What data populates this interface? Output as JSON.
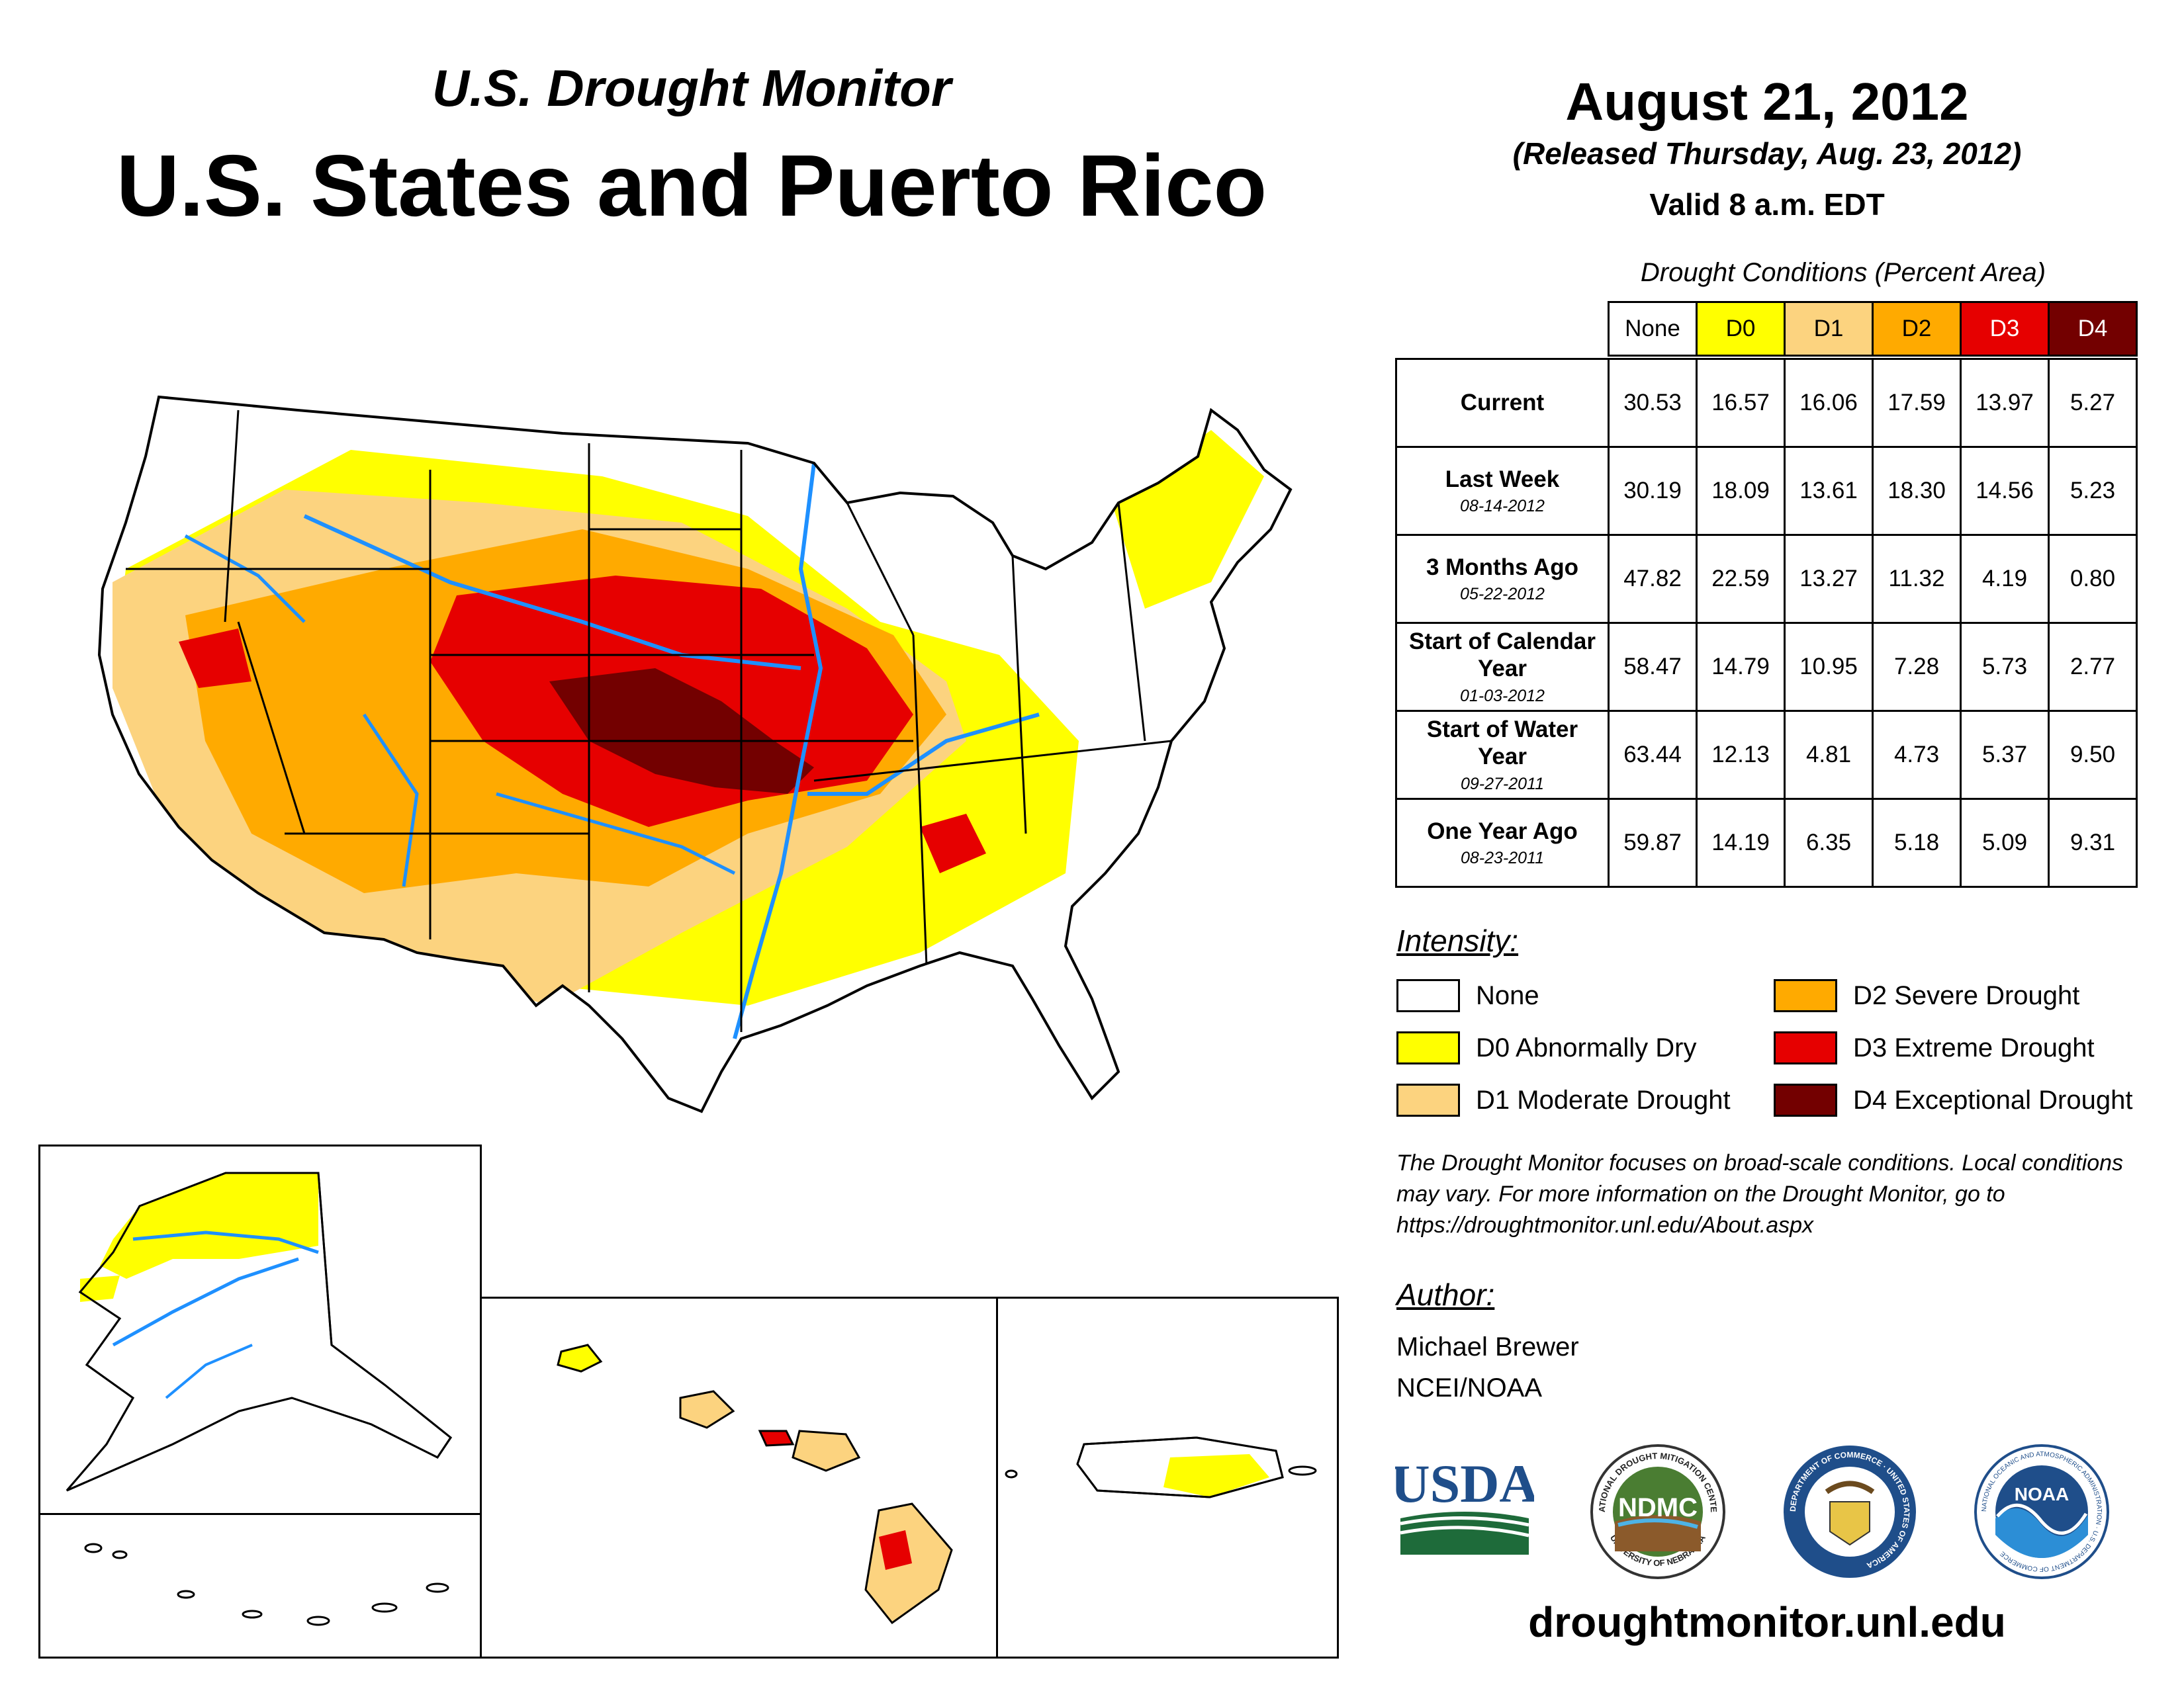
{
  "header": {
    "subtitle": "U.S. Drought Monitor",
    "title": "U.S. States and Puerto Rico",
    "date": "August 21, 2012",
    "released": "(Released Thursday, Aug. 23, 2012)",
    "valid": "Valid 8 a.m. EDT"
  },
  "table": {
    "title": "Drought Conditions (Percent Area)",
    "columns": [
      "None",
      "D0",
      "D1",
      "D2",
      "D3",
      "D4"
    ],
    "column_colors": [
      "#ffffff",
      "#ffff00",
      "#fcd37f",
      "#ffaa00",
      "#e60000",
      "#730000"
    ],
    "rows": [
      {
        "label": "Current",
        "sub": "",
        "values": [
          "30.53",
          "16.57",
          "16.06",
          "17.59",
          "13.97",
          "5.27"
        ]
      },
      {
        "label": "Last Week",
        "sub": "08-14-2012",
        "values": [
          "30.19",
          "18.09",
          "13.61",
          "18.30",
          "14.56",
          "5.23"
        ]
      },
      {
        "label": "3 Months Ago",
        "sub": "05-22-2012",
        "values": [
          "47.82",
          "22.59",
          "13.27",
          "11.32",
          "4.19",
          "0.80"
        ]
      },
      {
        "label": "Start of Calendar Year",
        "sub": "01-03-2012",
        "values": [
          "58.47",
          "14.79",
          "10.95",
          "7.28",
          "5.73",
          "2.77"
        ]
      },
      {
        "label": "Start of Water Year",
        "sub": "09-27-2011",
        "values": [
          "63.44",
          "12.13",
          "4.81",
          "4.73",
          "5.37",
          "9.50"
        ]
      },
      {
        "label": "One Year Ago",
        "sub": "08-23-2011",
        "values": [
          "59.87",
          "14.19",
          "6.35",
          "5.18",
          "5.09",
          "9.31"
        ]
      }
    ]
  },
  "legend": {
    "heading": "Intensity:",
    "items": [
      {
        "label": "None",
        "color": "#ffffff"
      },
      {
        "label": "D0 Abnormally Dry",
        "color": "#ffff00"
      },
      {
        "label": "D1 Moderate Drought",
        "color": "#fcd37f"
      },
      {
        "label": "D2 Severe Drought",
        "color": "#ffaa00"
      },
      {
        "label": "D3 Extreme Drought",
        "color": "#e60000"
      },
      {
        "label": "D4 Exceptional Drought",
        "color": "#730000"
      }
    ]
  },
  "note": "The Drought Monitor focuses on broad-scale conditions. Local conditions may vary. For more information on the Drought Monitor, go to https://droughtmonitor.unl.edu/About.aspx",
  "author": {
    "heading": "Author:",
    "name": "Michael Brewer",
    "org": "NCEI/NOAA"
  },
  "logos": {
    "usda": "USDA",
    "ndmc": "NDMC",
    "ndmc_ring_top": "NATIONAL DROUGHT MITIGATION CENTER",
    "ndmc_ring_bottom": "UNIVERSITY OF NEBRASKA",
    "doc_ring": "DEPARTMENT OF COMMERCE · UNITED STATES OF AMERICA",
    "noaa": "NOAA",
    "noaa_ring": "NATIONAL OCEANIC AND ATMOSPHERIC ADMINISTRATION · U.S. DEPARTMENT OF COMMERCE"
  },
  "footer_url": "droughtmonitor.unl.edu",
  "colors": {
    "none": "#ffffff",
    "d0": "#ffff00",
    "d1": "#fcd37f",
    "d2": "#ffaa00",
    "d3": "#e60000",
    "d4": "#730000",
    "river": "#1e90ff",
    "border": "#000000"
  }
}
